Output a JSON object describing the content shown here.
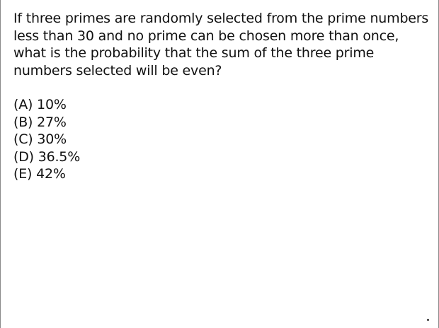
{
  "slide": {
    "question_lines": [
      "If three primes are randomly selected from the prime numbers",
      "less than 30 and no prime can be chosen more than once,",
      "what is the probability that the sum of the three prime",
      "numbers selected will be even?"
    ],
    "choices": [
      {
        "label": "(A) 10%"
      },
      {
        "label": "(B) 27%"
      },
      {
        "label": "(C) 30%"
      },
      {
        "label": "(D) 36.5%"
      },
      {
        "label": "(E) 42%"
      }
    ]
  }
}
